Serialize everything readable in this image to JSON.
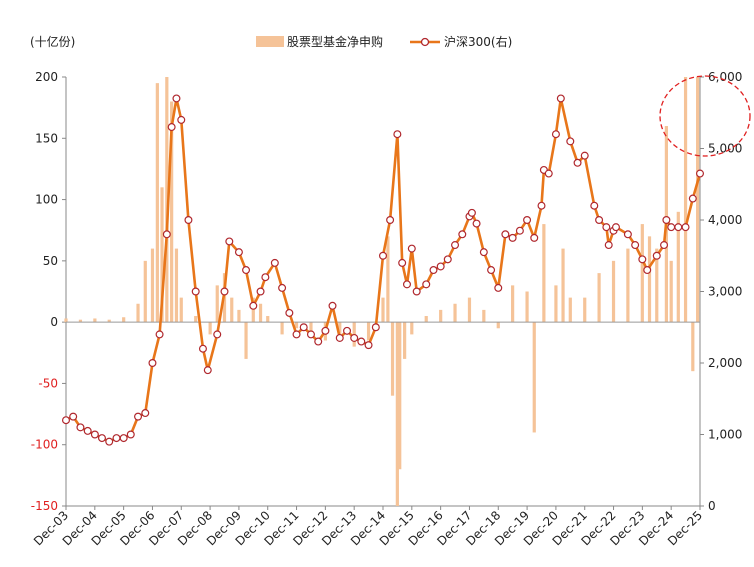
{
  "chart_data": {
    "type": "bar+line",
    "y_left_unit": "(十亿份)",
    "legend": {
      "placement": "top-center"
    },
    "y_left": {
      "ylim": [
        -150,
        200
      ],
      "ticks": [
        200,
        150,
        100,
        50,
        0,
        -50,
        -100,
        -150
      ]
    },
    "y_right": {
      "ylim": [
        0,
        6000
      ],
      "ticks": [
        "6,000",
        "5,000",
        "4,000",
        "3,000",
        "2,000",
        "1,000",
        "0"
      ]
    },
    "x_ticks": [
      "Dec-03",
      "Dec-04",
      "Dec-05",
      "Dec-06",
      "Dec-07",
      "Dec-08",
      "Dec-09",
      "Dec-10",
      "Dec-11",
      "Dec-12",
      "Dec-13",
      "Dec-14",
      "Dec-15",
      "Dec-16",
      "Dec-17",
      "Dec-18",
      "Dec-19",
      "Dec-20",
      "Dec-21",
      "Dec-22",
      "Dec-23",
      "Dec-24",
      "Dec-25"
    ],
    "grid": false,
    "colors": {
      "bar": "#F5C398",
      "line": "#E8761A",
      "marker_edge": "#B0282E",
      "negative_tick": "#E02020",
      "highlight": "#E02020"
    },
    "series": [
      {
        "name": "股票型基金净申购",
        "type": "bar",
        "axis": "left",
        "x": [
          "2003-12-01",
          "2004-06-01",
          "2004-12-01",
          "2005-06-01",
          "2005-12-01",
          "2006-06-01",
          "2006-09-01",
          "2006-12-01",
          "2007-02-01",
          "2007-04-01",
          "2007-06-01",
          "2007-08-01",
          "2007-10-01",
          "2007-12-01",
          "2008-06-01",
          "2008-12-01",
          "2009-03-01",
          "2009-06-01",
          "2009-09-01",
          "2009-12-01",
          "2010-03-01",
          "2010-06-01",
          "2010-09-01",
          "2010-12-01",
          "2011-06-01",
          "2011-12-01",
          "2012-06-01",
          "2012-12-01",
          "2013-06-01",
          "2013-12-01",
          "2014-06-01",
          "2014-12-01",
          "2015-02-01",
          "2015-04-01",
          "2015-06-01",
          "2015-07-01",
          "2015-09-01",
          "2015-12-01",
          "2016-06-01",
          "2016-12-01",
          "2017-06-01",
          "2017-12-01",
          "2018-06-01",
          "2018-12-01",
          "2019-06-01",
          "2019-12-01",
          "2020-03-01",
          "2020-07-01",
          "2020-12-01",
          "2021-03-01",
          "2021-06-01",
          "2021-12-01",
          "2022-06-01",
          "2022-12-01",
          "2023-06-01",
          "2023-12-01",
          "2024-03-01",
          "2024-06-01",
          "2024-10-01",
          "2024-12-01",
          "2025-03-01",
          "2025-06-01",
          "2025-09-01",
          "2025-11-01"
        ],
        "values": [
          3,
          2,
          3,
          2,
          4,
          15,
          50,
          60,
          195,
          110,
          200,
          180,
          60,
          20,
          5,
          -10,
          30,
          40,
          20,
          10,
          -30,
          20,
          15,
          5,
          -10,
          -5,
          -10,
          -15,
          -10,
          -20,
          -15,
          20,
          70,
          -60,
          -150,
          -120,
          -30,
          -10,
          5,
          10,
          15,
          20,
          10,
          -5,
          30,
          25,
          -90,
          80,
          30,
          60,
          20,
          20,
          40,
          50,
          60,
          80,
          70,
          60,
          160,
          50,
          90,
          200,
          -40,
          200
        ]
      },
      {
        "name": "沪深300(右)",
        "type": "line",
        "axis": "right",
        "x": [
          "2003-12-01",
          "2004-03-01",
          "2004-06-01",
          "2004-09-01",
          "2004-12-01",
          "2005-03-01",
          "2005-06-01",
          "2005-09-01",
          "2005-12-01",
          "2006-03-01",
          "2006-06-01",
          "2006-09-01",
          "2006-12-01",
          "2007-03-01",
          "2007-06-01",
          "2007-08-01",
          "2007-10-01",
          "2007-12-01",
          "2008-03-01",
          "2008-06-01",
          "2008-09-01",
          "2008-11-01",
          "2009-03-01",
          "2009-06-01",
          "2009-08-01",
          "2009-12-01",
          "2010-03-01",
          "2010-06-01",
          "2010-09-01",
          "2010-11-01",
          "2011-03-01",
          "2011-06-01",
          "2011-09-01",
          "2011-12-01",
          "2012-03-01",
          "2012-06-01",
          "2012-09-01",
          "2012-12-01",
          "2013-03-01",
          "2013-06-01",
          "2013-09-01",
          "2013-12-01",
          "2014-03-01",
          "2014-06-01",
          "2014-09-01",
          "2014-12-01",
          "2015-03-01",
          "2015-06-01",
          "2015-08-01",
          "2015-10-01",
          "2015-12-01",
          "2016-02-01",
          "2016-06-01",
          "2016-09-01",
          "2016-12-01",
          "2017-03-01",
          "2017-06-01",
          "2017-09-01",
          "2017-12-01",
          "2018-01-01",
          "2018-03-01",
          "2018-06-01",
          "2018-09-01",
          "2018-12-01",
          "2019-03-01",
          "2019-06-01",
          "2019-09-01",
          "2019-12-01",
          "2020-03-01",
          "2020-06-01",
          "2020-07-01",
          "2020-09-01",
          "2020-12-01",
          "2021-02-01",
          "2021-06-01",
          "2021-09-01",
          "2021-12-01",
          "2022-04-01",
          "2022-06-01",
          "2022-09-01",
          "2022-10-01",
          "2022-12-01",
          "2023-01-01",
          "2023-06-01",
          "2023-09-01",
          "2023-12-01",
          "2024-02-01",
          "2024-06-01",
          "2024-09-01",
          "2024-10-01",
          "2024-12-01",
          "2025-03-01",
          "2025-06-01",
          "2025-09-01",
          "2025-12-01"
        ],
        "values": [
          1200,
          1250,
          1100,
          1050,
          1000,
          950,
          900,
          950,
          950,
          1000,
          1250,
          1300,
          2000,
          2400,
          3800,
          5300,
          5700,
          5400,
          4000,
          3000,
          2200,
          1900,
          2400,
          3000,
          3700,
          3550,
          3300,
          2800,
          3000,
          3200,
          3400,
          3050,
          2700,
          2400,
          2500,
          2400,
          2300,
          2450,
          2800,
          2350,
          2450,
          2350,
          2300,
          2250,
          2500,
          3500,
          4000,
          5200,
          3400,
          3100,
          3600,
          3000,
          3100,
          3300,
          3350,
          3450,
          3650,
          3800,
          4050,
          4100,
          3950,
          3550,
          3300,
          3050,
          3800,
          3750,
          3850,
          4000,
          3750,
          4200,
          4700,
          4650,
          5200,
          5700,
          5100,
          4800,
          4900,
          4200,
          4000,
          3900,
          3650,
          3850,
          3900,
          3800,
          3650,
          3450,
          3300,
          3500,
          3650,
          4000,
          3900,
          3900,
          3900,
          4300,
          4650
        ]
      }
    ]
  }
}
